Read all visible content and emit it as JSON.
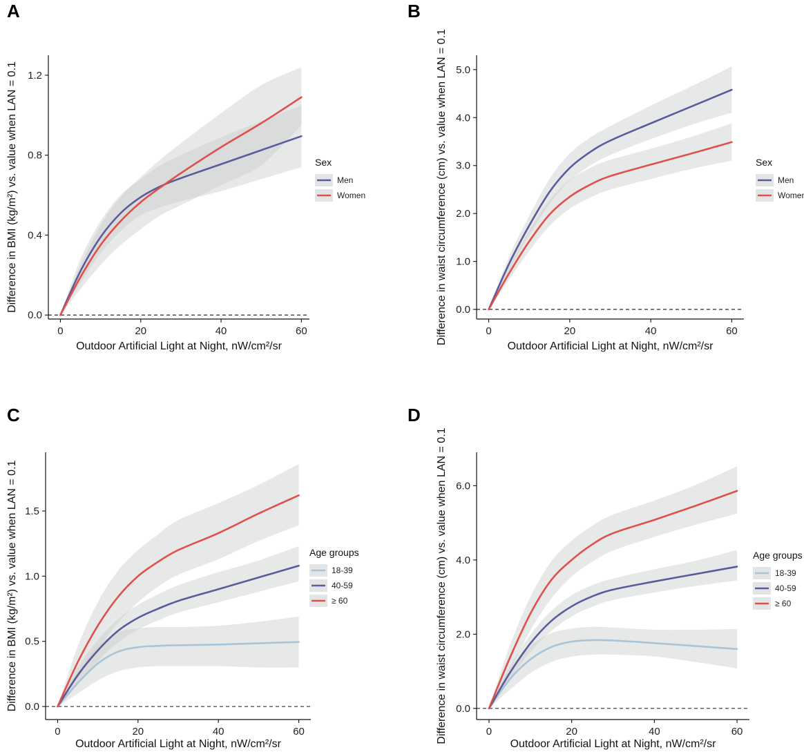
{
  "chart_data": [
    {
      "panel": "A",
      "type": "line",
      "xlabel": "Outdoor Artificial Light at Night, nW/cm²/sr",
      "ylabel": "Difference in BMI (kg/m²) vs. value when LAN = 0.1",
      "xlim": [
        -3,
        62
      ],
      "ylim": [
        -0.02,
        1.3
      ],
      "xticks": [
        0,
        20,
        40,
        60
      ],
      "yticks": [
        0.0,
        0.4,
        0.8,
        1.2
      ],
      "ytick_labels": [
        "0.0",
        "0.4",
        "0.8",
        "1.2"
      ],
      "reference_line_y": 0,
      "legend": {
        "title": "Sex",
        "position": "right"
      },
      "series": [
        {
          "name": "Men",
          "color": "#5b5b9b",
          "x": [
            0,
            5,
            10,
            15,
            20,
            25,
            30,
            40,
            50,
            60
          ],
          "y": [
            0,
            0.22,
            0.39,
            0.51,
            0.59,
            0.645,
            0.685,
            0.755,
            0.825,
            0.895
          ],
          "lower": [
            0,
            0.16,
            0.31,
            0.42,
            0.5,
            0.54,
            0.57,
            0.62,
            0.68,
            0.74
          ],
          "upper": [
            0,
            0.28,
            0.47,
            0.6,
            0.68,
            0.75,
            0.8,
            0.89,
            0.97,
            1.05
          ]
        },
        {
          "name": "Women",
          "color": "#e0504a",
          "x": [
            0,
            5,
            10,
            15,
            20,
            25,
            30,
            40,
            50,
            60
          ],
          "y": [
            0,
            0.19,
            0.35,
            0.47,
            0.565,
            0.64,
            0.71,
            0.84,
            0.96,
            1.09
          ],
          "lower": [
            0,
            0.13,
            0.25,
            0.35,
            0.43,
            0.5,
            0.55,
            0.65,
            0.75,
            0.95
          ],
          "upper": [
            0,
            0.25,
            0.45,
            0.59,
            0.69,
            0.78,
            0.86,
            1.01,
            1.15,
            1.24
          ]
        }
      ]
    },
    {
      "panel": "B",
      "type": "line",
      "xlabel": "Outdoor Artificial Light at Night, nW/cm²/sr",
      "ylabel": "Difference in waist circumference (cm) vs. value when LAN = 0.1",
      "xlim": [
        -3,
        63
      ],
      "ylim": [
        -0.2,
        5.3
      ],
      "xticks": [
        0,
        20,
        40,
        60
      ],
      "yticks": [
        0.0,
        1.0,
        2.0,
        3.0,
        4.0,
        5.0
      ],
      "ytick_labels": [
        "0.0",
        "1.0",
        "2.0",
        "3.0",
        "4.0",
        "5.0"
      ],
      "reference_line_y": 0,
      "legend": {
        "title": "Sex",
        "position": "right"
      },
      "series": [
        {
          "name": "Men",
          "color": "#5b5b9b",
          "x": [
            0,
            5,
            10,
            15,
            20,
            25,
            30,
            40,
            50,
            60
          ],
          "y": [
            0,
            0.95,
            1.75,
            2.45,
            2.95,
            3.28,
            3.52,
            3.88,
            4.23,
            4.58
          ],
          "lower": [
            0,
            0.8,
            1.55,
            2.2,
            2.68,
            3.0,
            3.22,
            3.55,
            3.85,
            4.1
          ],
          "upper": [
            0,
            1.1,
            1.95,
            2.72,
            3.25,
            3.58,
            3.82,
            4.25,
            4.65,
            5.07
          ]
        },
        {
          "name": "Women",
          "color": "#e0504a",
          "x": [
            0,
            5,
            10,
            15,
            20,
            25,
            30,
            40,
            50,
            60
          ],
          "y": [
            0,
            0.75,
            1.42,
            1.98,
            2.35,
            2.6,
            2.78,
            3.02,
            3.25,
            3.49
          ],
          "lower": [
            0,
            0.62,
            1.22,
            1.74,
            2.1,
            2.33,
            2.5,
            2.72,
            2.93,
            3.1
          ],
          "upper": [
            0,
            0.9,
            1.65,
            2.28,
            2.7,
            2.95,
            3.12,
            3.35,
            3.6,
            3.88
          ]
        }
      ]
    },
    {
      "panel": "C",
      "type": "line",
      "xlabel": "Outdoor Artificial Light at Night, nW/cm²/sr",
      "ylabel": "Difference in BMI (kg/m²) vs. value when LAN = 0.1",
      "xlim": [
        -3,
        63
      ],
      "ylim": [
        -0.1,
        1.95
      ],
      "xticks": [
        0,
        20,
        40,
        60
      ],
      "yticks": [
        0.0,
        0.5,
        1.0,
        1.5
      ],
      "ytick_labels": [
        "0.0",
        "0.5",
        "1.0",
        "1.5"
      ],
      "reference_line_y": 0,
      "legend": {
        "title": "Age groups",
        "position": "right"
      },
      "series": [
        {
          "name": "18-39",
          "color": "#a9c4d6",
          "x": [
            0,
            5,
            10,
            15,
            20,
            25,
            30,
            40,
            50,
            60
          ],
          "y": [
            0,
            0.18,
            0.33,
            0.42,
            0.455,
            0.465,
            0.47,
            0.475,
            0.485,
            0.495
          ],
          "lower": [
            0,
            0.1,
            0.2,
            0.27,
            0.3,
            0.31,
            0.31,
            0.31,
            0.3,
            0.3
          ],
          "upper": [
            0,
            0.26,
            0.46,
            0.57,
            0.6,
            0.61,
            0.61,
            0.62,
            0.65,
            0.69
          ]
        },
        {
          "name": "40-59",
          "color": "#5b5b9b",
          "x": [
            0,
            5,
            10,
            15,
            20,
            25,
            30,
            40,
            50,
            60
          ],
          "y": [
            0,
            0.24,
            0.43,
            0.58,
            0.68,
            0.75,
            0.81,
            0.9,
            0.99,
            1.08
          ],
          "lower": [
            0,
            0.18,
            0.35,
            0.49,
            0.59,
            0.66,
            0.72,
            0.8,
            0.88,
            0.96
          ],
          "upper": [
            0,
            0.3,
            0.51,
            0.67,
            0.78,
            0.86,
            0.93,
            1.03,
            1.12,
            1.23
          ]
        },
        {
          "name": "≥ 60",
          "color": "#e0504a",
          "x": [
            0,
            5,
            10,
            15,
            20,
            25,
            30,
            40,
            50,
            60
          ],
          "y": [
            0,
            0.34,
            0.62,
            0.84,
            1.0,
            1.11,
            1.2,
            1.33,
            1.48,
            1.62
          ],
          "lower": [
            0,
            0.22,
            0.44,
            0.64,
            0.8,
            0.92,
            1.01,
            1.13,
            1.27,
            1.39
          ],
          "upper": [
            0,
            0.46,
            0.8,
            1.04,
            1.2,
            1.32,
            1.43,
            1.56,
            1.7,
            1.86
          ]
        }
      ]
    },
    {
      "panel": "D",
      "type": "line",
      "xlabel": "Outdoor Artificial Light at Night, nW/cm²/sr",
      "ylabel": "Difference in waist circumference (cm) vs. value when LAN = 0.1",
      "xlim": [
        -3,
        63
      ],
      "ylim": [
        -0.3,
        6.9
      ],
      "xticks": [
        0,
        20,
        40,
        60
      ],
      "yticks": [
        0.0,
        2.0,
        4.0,
        6.0
      ],
      "ytick_labels": [
        "0.0",
        "2.0",
        "4.0",
        "6.0"
      ],
      "reference_line_y": 0,
      "legend": {
        "title": "Age groups",
        "position": "right"
      },
      "series": [
        {
          "name": "18-39",
          "color": "#a9c4d6",
          "x": [
            0,
            5,
            10,
            15,
            20,
            25,
            30,
            40,
            50,
            60
          ],
          "y": [
            0,
            0.78,
            1.32,
            1.65,
            1.8,
            1.84,
            1.83,
            1.76,
            1.68,
            1.6
          ],
          "lower": [
            0,
            0.5,
            0.95,
            1.25,
            1.4,
            1.45,
            1.45,
            1.4,
            1.25,
            1.08
          ],
          "upper": [
            0,
            1.05,
            1.68,
            2.02,
            2.15,
            2.2,
            2.18,
            2.12,
            2.12,
            2.14
          ]
        },
        {
          "name": "40-59",
          "color": "#5b5b9b",
          "x": [
            0,
            5,
            10,
            15,
            20,
            25,
            30,
            40,
            50,
            60
          ],
          "y": [
            0,
            0.95,
            1.75,
            2.35,
            2.75,
            3.02,
            3.2,
            3.42,
            3.62,
            3.82
          ],
          "lower": [
            0,
            0.78,
            1.52,
            2.08,
            2.48,
            2.74,
            2.92,
            3.12,
            3.3,
            3.45
          ],
          "upper": [
            0,
            1.12,
            1.98,
            2.62,
            3.05,
            3.32,
            3.5,
            3.75,
            3.98,
            4.27
          ]
        },
        {
          "name": "≥ 60",
          "color": "#e0504a",
          "x": [
            0,
            5,
            10,
            15,
            20,
            25,
            30,
            40,
            50,
            60
          ],
          "y": [
            0,
            1.35,
            2.55,
            3.45,
            4.0,
            4.42,
            4.72,
            5.08,
            5.46,
            5.86
          ],
          "lower": [
            0,
            1.02,
            2.1,
            2.95,
            3.55,
            3.95,
            4.25,
            4.62,
            4.95,
            5.25
          ],
          "upper": [
            0,
            1.68,
            3.0,
            3.95,
            4.52,
            4.92,
            5.22,
            5.6,
            6.02,
            6.52
          ]
        }
      ]
    }
  ]
}
